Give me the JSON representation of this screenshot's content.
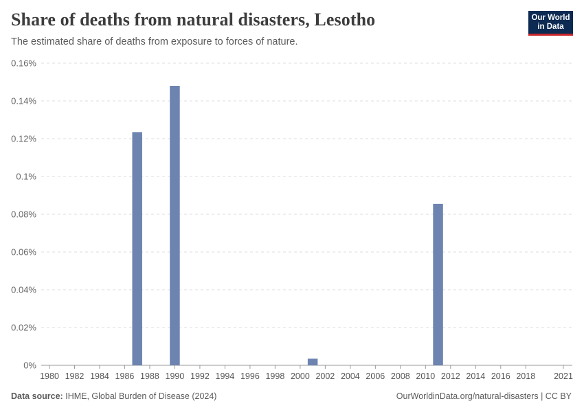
{
  "header": {
    "title": "Share of deaths from natural disasters, Lesotho",
    "subtitle": "The estimated share of deaths from exposure to forces of nature."
  },
  "logo": {
    "line1": "Our World",
    "line2": "in Data"
  },
  "footer": {
    "source_label": "Data source:",
    "source_text": "IHME, Global Burden of Disease (2024)",
    "right_text": "OurWorldinData.org/natural-disasters | CC BY"
  },
  "colors": {
    "bar": "#6d84b0",
    "grid": "#dddddd",
    "axis": "#999999"
  },
  "chart_data": {
    "type": "bar",
    "title": "Share of deaths from natural disasters, Lesotho",
    "xlabel": "",
    "ylabel": "",
    "xlim": [
      1980,
      2021
    ],
    "ylim": [
      0,
      0.16
    ],
    "y_ticks": [
      0,
      0.02,
      0.04,
      0.06,
      0.08,
      0.1,
      0.12,
      0.14,
      0.16
    ],
    "y_tick_labels": [
      "0%",
      "0.02%",
      "0.04%",
      "0.06%",
      "0.08%",
      "0.1%",
      "0.12%",
      "0.14%",
      "0.16%"
    ],
    "x_tick_labels": [
      "1980",
      "1982",
      "1984",
      "1986",
      "1988",
      "1990",
      "1992",
      "1994",
      "1996",
      "1998",
      "2000",
      "2002",
      "2004",
      "2006",
      "2008",
      "2010",
      "2012",
      "2014",
      "2016",
      "2018",
      "2021"
    ],
    "grid": true,
    "unit": "%",
    "series": [
      {
        "name": "Share of deaths from natural disasters",
        "x": [
          1987,
          1990,
          2001,
          2011
        ],
        "values": [
          0.1235,
          0.148,
          0.0035,
          0.0855
        ]
      }
    ]
  }
}
